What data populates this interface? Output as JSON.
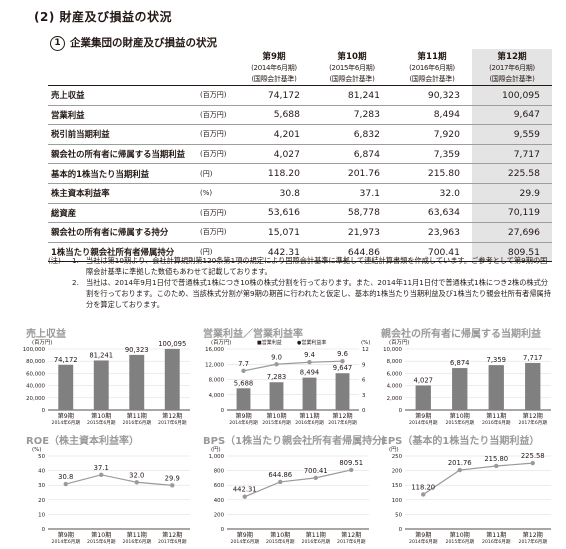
{
  "section_title": "(2) 財産及び損益の状況",
  "subsection": {
    "number": "1",
    "title": "企業集団の財産及び損益の状況"
  },
  "table": {
    "periods": [
      {
        "name": "第9期",
        "date": "(2014年6月期)",
        "std": "(国際会計基準)"
      },
      {
        "name": "第10期",
        "date": "(2015年6月期)",
        "std": "(国際会計基準)"
      },
      {
        "name": "第11期",
        "date": "(2016年6月期)",
        "std": "(国際会計基準)"
      },
      {
        "name": "第12期",
        "date": "(2017年6月期)",
        "std": "(国際会計基準)"
      }
    ],
    "rows": [
      {
        "label": "売上収益",
        "unit": "(百万円)",
        "values": [
          "74,172",
          "81,241",
          "90,323",
          "100,095"
        ]
      },
      {
        "label": "営業利益",
        "unit": "(百万円)",
        "values": [
          "5,688",
          "7,283",
          "8,494",
          "9,647"
        ]
      },
      {
        "label": "税引前当期利益",
        "unit": "(百万円)",
        "values": [
          "4,201",
          "6,832",
          "7,920",
          "9,559"
        ]
      },
      {
        "label": "親会社の所有者に帰属する当期利益",
        "unit": "(百万円)",
        "values": [
          "4,027",
          "6,874",
          "7,359",
          "7,717"
        ]
      },
      {
        "label": "基本的1株当たり当期利益",
        "unit": "(円)",
        "values": [
          "118.20",
          "201.76",
          "215.80",
          "225.58"
        ]
      },
      {
        "label": "株主資本利益率",
        "unit": "(%)",
        "values": [
          "30.8",
          "37.1",
          "32.0",
          "29.9"
        ]
      },
      {
        "label": "総資産",
        "unit": "(百万円)",
        "values": [
          "53,616",
          "58,778",
          "63,634",
          "70,119"
        ]
      },
      {
        "label": "親会社の所有者に帰属する持分",
        "unit": "(百万円)",
        "values": [
          "15,071",
          "21,973",
          "23,963",
          "27,696"
        ]
      },
      {
        "label": "1株当たり親会社所有者帰属持分",
        "unit": "(円)",
        "values": [
          "442.31",
          "644.86",
          "700.41",
          "809.51"
        ]
      }
    ]
  },
  "notes": {
    "mark": "(注)",
    "items": [
      {
        "num": "1.",
        "text": "当社は第10期より、会社計算規則第120条第1項の規定により国際会計基準に準拠して連結計算書類を作成しています。ご参考として第9期の国際会計基準に準拠した数値もあわせて記載しております。"
      },
      {
        "num": "2.",
        "text": "当社は、2014年9月1日付で普通株式1株につき10株の株式分割を行っております。また、2014年11月1日付で普通株式1株につき2株の株式分割を行っております。このため、当該株式分割が第9期の期首に行われたと仮定し、基本的1株当たり当期利益及び1株当たり親会社所有者帰属持分を算定しております。"
      }
    ]
  },
  "chart_categories": [
    "第9期",
    "第10期",
    "第11期",
    "第12期"
  ],
  "chart_subcategories": [
    "2014年6月期",
    "2015年6月期",
    "2016年6月期",
    "2017年6月期"
  ],
  "colors": {
    "bar": "#808080",
    "line": "#9a9a9a",
    "highlight": "#e4e4e4",
    "chart_title": "#9a9a9a"
  },
  "chart_data": [
    {
      "type": "bar",
      "title": "売上収益",
      "unit": "(百万円)",
      "categories": [
        "第9期",
        "第10期",
        "第11期",
        "第12期"
      ],
      "values": [
        74172,
        81241,
        90323,
        100095
      ],
      "data_labels": [
        "74,172",
        "81,241",
        "90,323",
        "100,095"
      ],
      "ylim": [
        0,
        100000
      ],
      "yticks": [
        0,
        20000,
        40000,
        60000,
        80000,
        100000
      ],
      "ytick_labels": [
        "0",
        "20,000",
        "40,000",
        "60,000",
        "80,000",
        "100,000"
      ]
    },
    {
      "type": "bar+line",
      "title": "営業利益／営業利益率",
      "unit_left": "(百万円)",
      "unit_right": "(%)",
      "legend": [
        "■営業利益",
        "●営業利益率"
      ],
      "legend_position": "top",
      "categories": [
        "第9期",
        "第10期",
        "第11期",
        "第12期"
      ],
      "series": [
        {
          "name": "営業利益",
          "type": "bar",
          "values": [
            5688,
            7283,
            8494,
            9647
          ],
          "labels": [
            "5,688",
            "7,283",
            "8,494",
            "9,647"
          ]
        },
        {
          "name": "営業利益率",
          "type": "line",
          "values": [
            7.7,
            9.0,
            9.4,
            9.6
          ],
          "labels": [
            "7.7",
            "9.0",
            "9.4",
            "9.6"
          ]
        }
      ],
      "ylim_left": [
        0,
        16000
      ],
      "yticks_left": [
        0,
        4000,
        8000,
        12000,
        16000
      ],
      "ytick_labels_left": [
        "0",
        "4,000",
        "8,000",
        "12,000",
        "16,000"
      ],
      "ylim_right": [
        0,
        12
      ],
      "yticks_right": [
        0,
        3,
        6,
        9,
        12
      ],
      "ytick_labels_right": [
        "0",
        "3",
        "6",
        "9",
        "12"
      ]
    },
    {
      "type": "bar",
      "title": "親会社の所有者に帰属する当期利益",
      "unit": "(百万円)",
      "categories": [
        "第9期",
        "第10期",
        "第11期",
        "第12期"
      ],
      "values": [
        4027,
        6874,
        7359,
        7717
      ],
      "data_labels": [
        "4,027",
        "6,874",
        "7,359",
        "7,717"
      ],
      "ylim": [
        0,
        10000
      ],
      "yticks": [
        0,
        2000,
        4000,
        6000,
        8000,
        10000
      ],
      "ytick_labels": [
        "0",
        "2,000",
        "4,000",
        "6,000",
        "8,000",
        "10,000"
      ]
    },
    {
      "type": "line",
      "title": "ROE（株主資本利益率）",
      "unit": "(%)",
      "categories": [
        "第9期",
        "第10期",
        "第11期",
        "第12期"
      ],
      "values": [
        30.8,
        37.1,
        32.0,
        29.9
      ],
      "data_labels": [
        "30.8",
        "37.1",
        "32.0",
        "29.9"
      ],
      "ylim": [
        0,
        50
      ],
      "yticks": [
        0,
        10,
        20,
        30,
        40,
        50
      ],
      "ytick_labels": [
        "0",
        "10",
        "20",
        "30",
        "40",
        "50"
      ]
    },
    {
      "type": "line",
      "title": "BPS（1株当たり親会社所有者帰属持分）",
      "unit": "(円)",
      "categories": [
        "第9期",
        "第10期",
        "第11期",
        "第12期"
      ],
      "values": [
        442.31,
        644.86,
        700.41,
        809.51
      ],
      "data_labels": [
        "442.31",
        "644.86",
        "700.41",
        "809.51"
      ],
      "ylim": [
        0,
        1000
      ],
      "yticks": [
        0,
        200,
        400,
        600,
        800,
        1000
      ],
      "ytick_labels": [
        "0",
        "200",
        "400",
        "600",
        "800",
        "1,000"
      ]
    },
    {
      "type": "line",
      "title": "EPS（基本的1株当たり当期利益）",
      "unit": "(円)",
      "categories": [
        "第9期",
        "第10期",
        "第11期",
        "第12期"
      ],
      "values": [
        118.2,
        201.76,
        215.8,
        225.58
      ],
      "data_labels": [
        "118.20",
        "201.76",
        "215.80",
        "225.58"
      ],
      "ylim": [
        0,
        250
      ],
      "yticks": [
        0,
        50,
        100,
        150,
        200,
        250
      ],
      "ytick_labels": [
        "0",
        "50",
        "100",
        "150",
        "200",
        "250"
      ]
    }
  ]
}
